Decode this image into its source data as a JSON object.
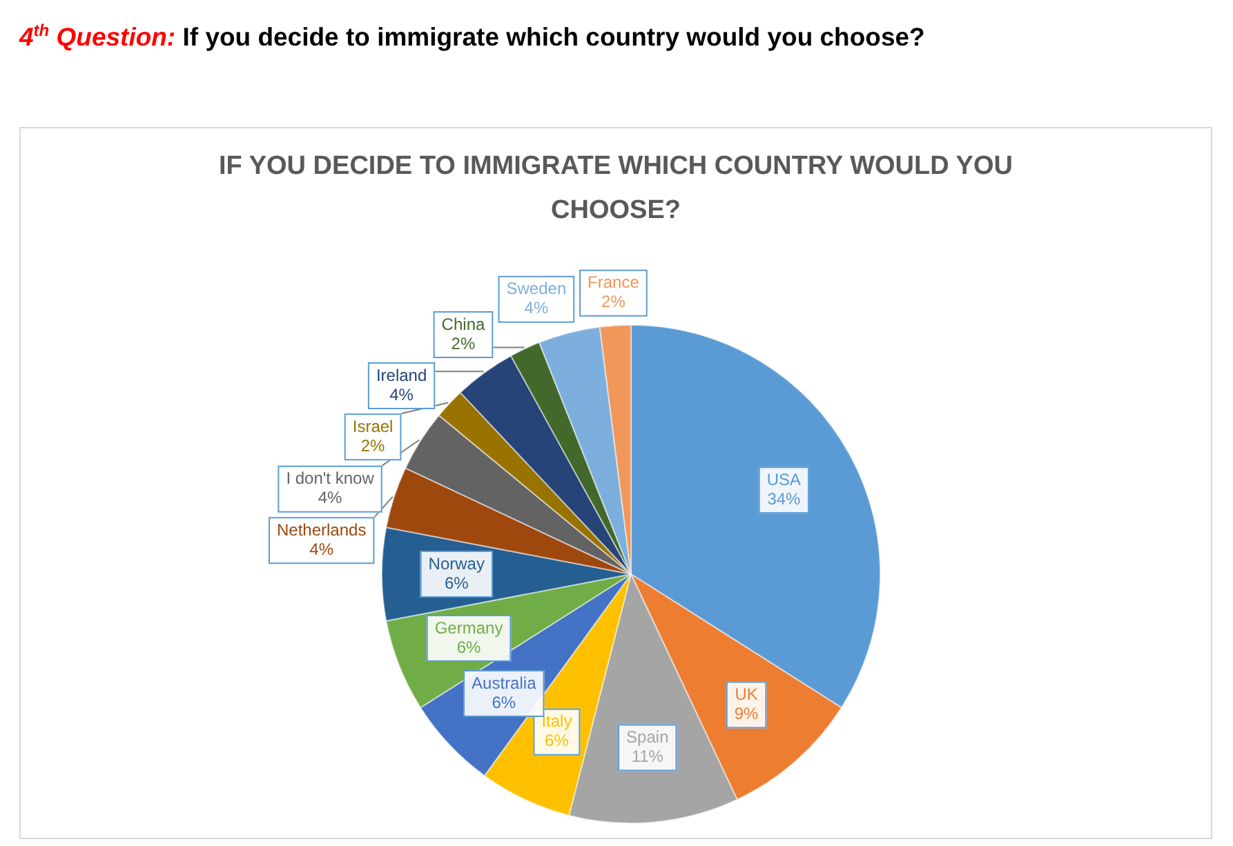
{
  "chart_data": {
    "type": "pie",
    "title": "IF YOU DECIDE TO IMMIGRATE WHICH COUNTRY WOULD YOU CHOOSE?",
    "annotations": [
      "4$^{th}$ Question:",
      "If you decide to immigrate which country would you choose?"
    ],
    "categories": [
      "USA",
      "UK",
      "Spain",
      "Italy",
      "Australia",
      "Germany",
      "Norway",
      "Netherlands",
      "I don't know",
      "Israel",
      "Ireland",
      "China",
      "Sweden",
      "France"
    ],
    "values": [
      34,
      9,
      11,
      6,
      6,
      6,
      6,
      4,
      4,
      2,
      4,
      2,
      4,
      2
    ],
    "value_labels": [
      "34%",
      "9%",
      "11%",
      "6%",
      "6%",
      "6%",
      "6%",
      "4%",
      "4%",
      "2%",
      "4%",
      "2%",
      "4%",
      "2%"
    ],
    "colors": [
      "#5b9bd5",
      "#ed7d31",
      "#a5a5a5",
      "#ffc000",
      "#4472c4",
      "#70ad47",
      "#255e91",
      "#9e480e",
      "#636363",
      "#997300",
      "#264478",
      "#43682b",
      "#7cafdd",
      "#f1975a"
    ]
  }
}
